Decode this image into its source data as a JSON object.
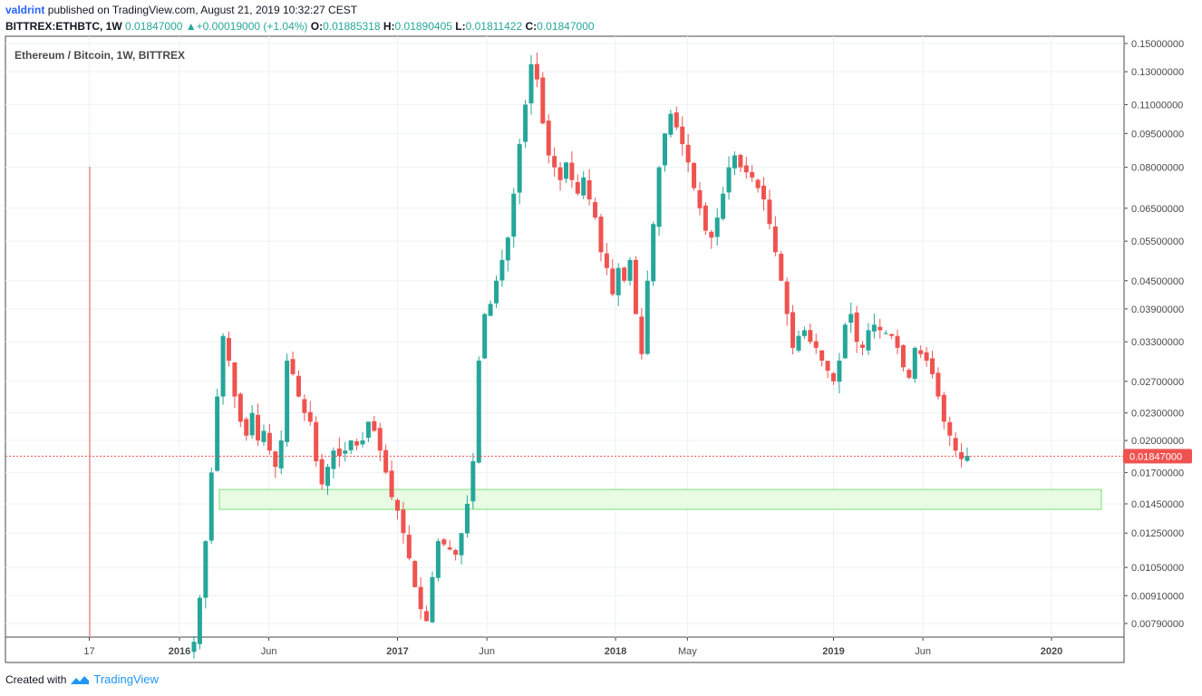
{
  "header": {
    "author": "valdrint",
    "published": "published on TradingView.com, August 21, 2019 10:32:27 CEST",
    "symbol": "BITTREX:ETHBTC, 1W",
    "last": "0.01847000",
    "change_arrow": "▲",
    "change": "+0.00019000 (+1.04%)",
    "o_label": "O:",
    "o": "0.01885318",
    "h_label": "H:",
    "h": "0.01890405",
    "l_label": "L:",
    "l": "0.01811422",
    "c_label": "C:",
    "c": "0.01847000"
  },
  "footer": {
    "created_with": "Created with",
    "brand": "TradingView"
  },
  "colors": {
    "up": "#26a69a",
    "down": "#ef5350",
    "zone_fill": "#e8fbe3",
    "zone_stroke": "#7be07b",
    "price_tag": "#ef5350"
  },
  "chart_data": {
    "type": "candlestick",
    "title": "Ethereum / Bitcoin, 1W, BITTREX",
    "scale": "log",
    "y_ticks": [
      "0.15000000",
      "0.13000000",
      "0.11000000",
      "0.09500000",
      "0.08000000",
      "0.06500000",
      "0.05500000",
      "0.04500000",
      "0.03900000",
      "0.03300000",
      "0.02700000",
      "0.02300000",
      "0.02000000",
      "0.01700000",
      "0.01450000",
      "0.01250000",
      "0.01050000",
      "0.00910000",
      "0.00790000"
    ],
    "x_ticks": [
      "17",
      "2016",
      "Jun",
      "2017",
      "Jun",
      "2018",
      "May",
      "2019",
      "Jun",
      "2020"
    ],
    "current_price": 0.01847,
    "current_price_label": "0.01847000",
    "support_zone": {
      "low": 0.0141,
      "high": 0.0156,
      "from": "2016-03",
      "to": "2020-01"
    },
    "candles_close_path": [
      0.0072,
      0.009,
      0.012,
      0.017,
      0.025,
      0.034,
      0.03,
      0.025,
      0.022,
      0.0205,
      0.023,
      0.02,
      0.021,
      0.019,
      0.0175,
      0.02,
      0.03,
      0.028,
      0.025,
      0.023,
      0.022,
      0.018,
      0.016,
      0.0175,
      0.019,
      0.0185,
      0.019,
      0.02,
      0.0195,
      0.02,
      0.022,
      0.021,
      0.019,
      0.017,
      0.015,
      0.014,
      0.0125,
      0.011,
      0.0095,
      0.0085,
      0.008,
      0.01,
      0.012,
      0.0118,
      0.0115,
      0.0112,
      0.0125,
      0.0145,
      0.018,
      0.03,
      0.038,
      0.04,
      0.045,
      0.05,
      0.056,
      0.07,
      0.09,
      0.11,
      0.135,
      0.125,
      0.1,
      0.085,
      0.08,
      0.075,
      0.082,
      0.075,
      0.07,
      0.076,
      0.068,
      0.062,
      0.052,
      0.048,
      0.042,
      0.048,
      0.045,
      0.05,
      0.038,
      0.031,
      0.045,
      0.06,
      0.08,
      0.095,
      0.105,
      0.098,
      0.09,
      0.082,
      0.072,
      0.065,
      0.058,
      0.056,
      0.062,
      0.07,
      0.08,
      0.085,
      0.08,
      0.078,
      0.076,
      0.072,
      0.068,
      0.06,
      0.052,
      0.045,
      0.038,
      0.032,
      0.034,
      0.035,
      0.033,
      0.032,
      0.03,
      0.0285,
      0.027,
      0.03,
      0.036,
      0.038,
      0.033,
      0.032,
      0.035,
      0.036,
      0.035,
      0.0345,
      0.034,
      0.032,
      0.029,
      0.0275,
      0.032,
      0.031,
      0.03,
      0.028,
      0.025,
      0.022,
      0.0205,
      0.019,
      0.0182,
      0.0185
    ]
  }
}
